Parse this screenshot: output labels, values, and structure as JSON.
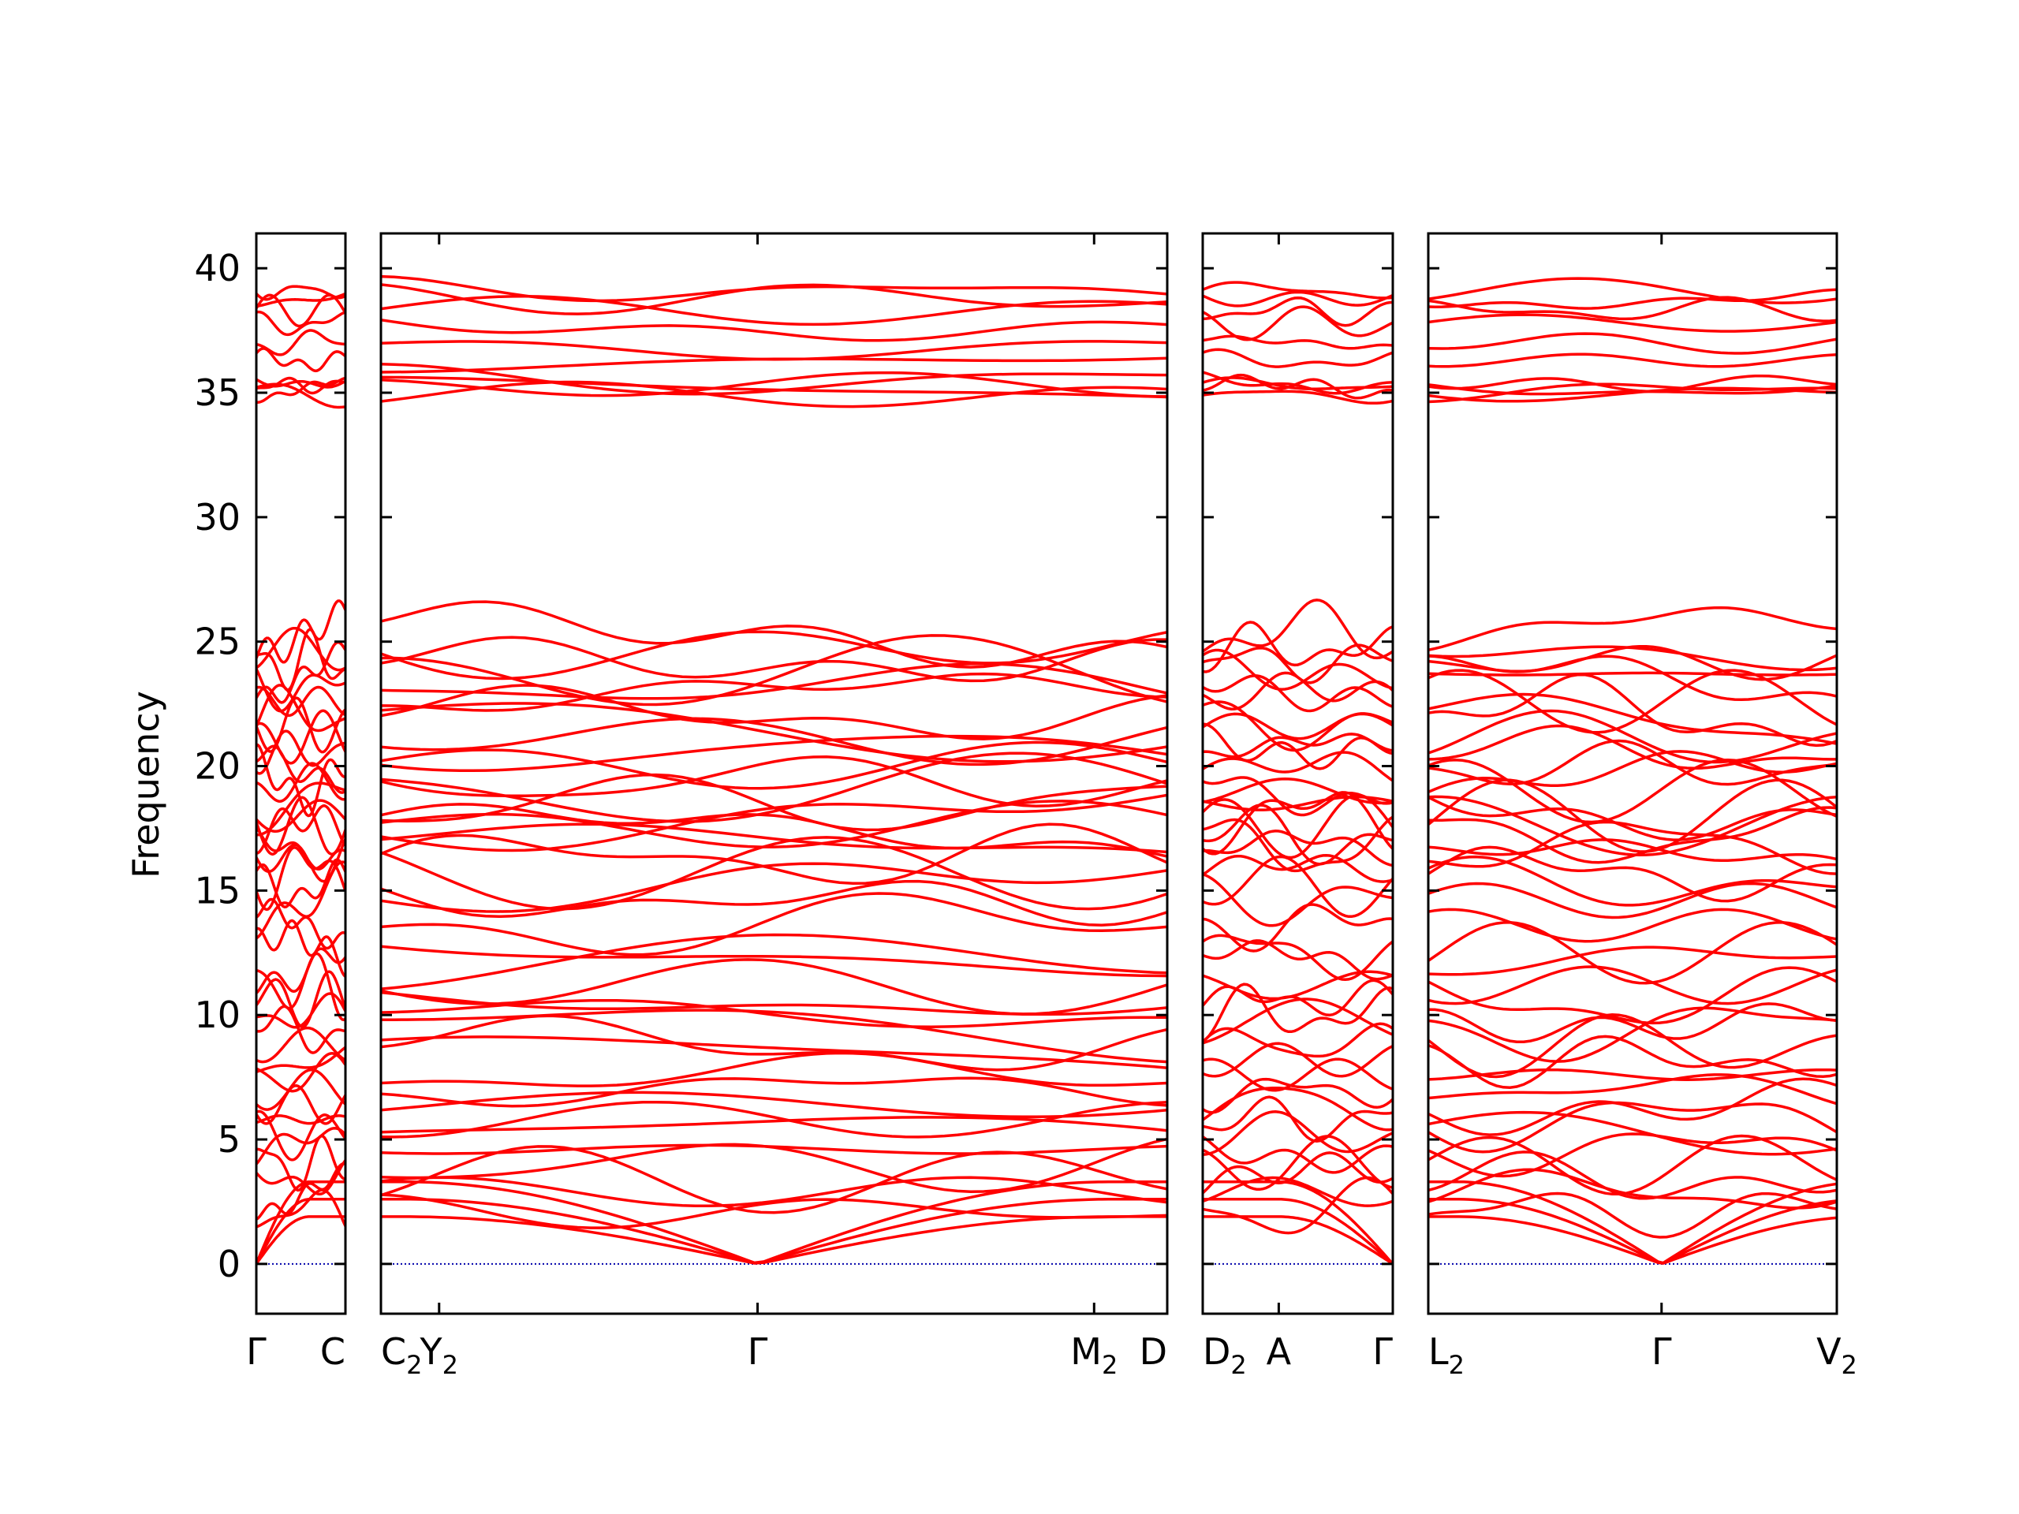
{
  "chart_data": {
    "type": "line",
    "ylabel": "Frequency",
    "xlabel": "",
    "ylim": [
      -2,
      41.4
    ],
    "yticks": [
      "0",
      "5",
      "10",
      "15",
      "20",
      "25",
      "30",
      "35",
      "40"
    ],
    "line_color": "#ff0000",
    "zero_line_color": "#0000aa",
    "grid": false,
    "panels": [
      {
        "segments": [
          {
            "from": "Γ",
            "to": "C"
          }
        ],
        "tick_labels": [
          {
            "label": "Γ",
            "pos": 0.0
          },
          {
            "label": "C",
            "pos": 1.0
          }
        ]
      },
      {
        "segments": [
          {
            "from": "C2",
            "to": "Y2"
          },
          {
            "from": "Y2",
            "to": "Γ"
          },
          {
            "from": "Γ",
            "to": "M2"
          },
          {
            "from": "M2",
            "to": "D"
          }
        ],
        "tick_labels": [
          {
            "label": "C",
            "sub": "2",
            "pos": 0.0
          },
          {
            "label": "Y",
            "sub": "2",
            "pos": 0.074
          },
          {
            "label": "Γ",
            "sub": "",
            "pos": 0.479
          },
          {
            "label": "M",
            "sub": "2",
            "pos": 0.907
          },
          {
            "label": "D",
            "sub": "",
            "pos": 1.0
          }
        ]
      },
      {
        "segments": [
          {
            "from": "D2",
            "to": "A"
          },
          {
            "from": "A",
            "to": "Γ"
          }
        ],
        "tick_labels": [
          {
            "label": "D",
            "sub": "2",
            "pos": 0.0
          },
          {
            "label": "A",
            "sub": "",
            "pos": 0.4
          },
          {
            "label": "Γ",
            "sub": "",
            "pos": 1.0
          }
        ]
      },
      {
        "segments": [
          {
            "from": "L2",
            "to": "Γ"
          },
          {
            "from": "Γ",
            "to": "V2"
          }
        ],
        "tick_labels": [
          {
            "label": "L",
            "sub": "2",
            "pos": 0.0
          },
          {
            "label": "Γ",
            "sub": "",
            "pos": 0.571
          },
          {
            "label": "V",
            "sub": "2",
            "pos": 1.0
          }
        ]
      }
    ],
    "bands": {
      "high_group": [
        34.9,
        35.1,
        35.3,
        35.5,
        36.3,
        37.0,
        37.8,
        38.3,
        38.8,
        39.1
      ],
      "mid_group": [
        12.0,
        12.5,
        13.6,
        14.6,
        15.2,
        15.7,
        16.3,
        16.8,
        17.2,
        17.6,
        18.0,
        18.5,
        19.0,
        19.4,
        20.0,
        20.6,
        21.1,
        21.6,
        22.1,
        22.6,
        23.2,
        23.7,
        24.2,
        24.7,
        25.3
      ],
      "low_group": [
        2.1,
        2.9,
        3.4,
        4.0,
        4.6,
        5.2,
        5.8,
        6.4,
        7.0,
        7.6,
        8.2,
        8.8,
        9.4,
        10.0,
        10.6,
        11.2
      ]
    }
  }
}
